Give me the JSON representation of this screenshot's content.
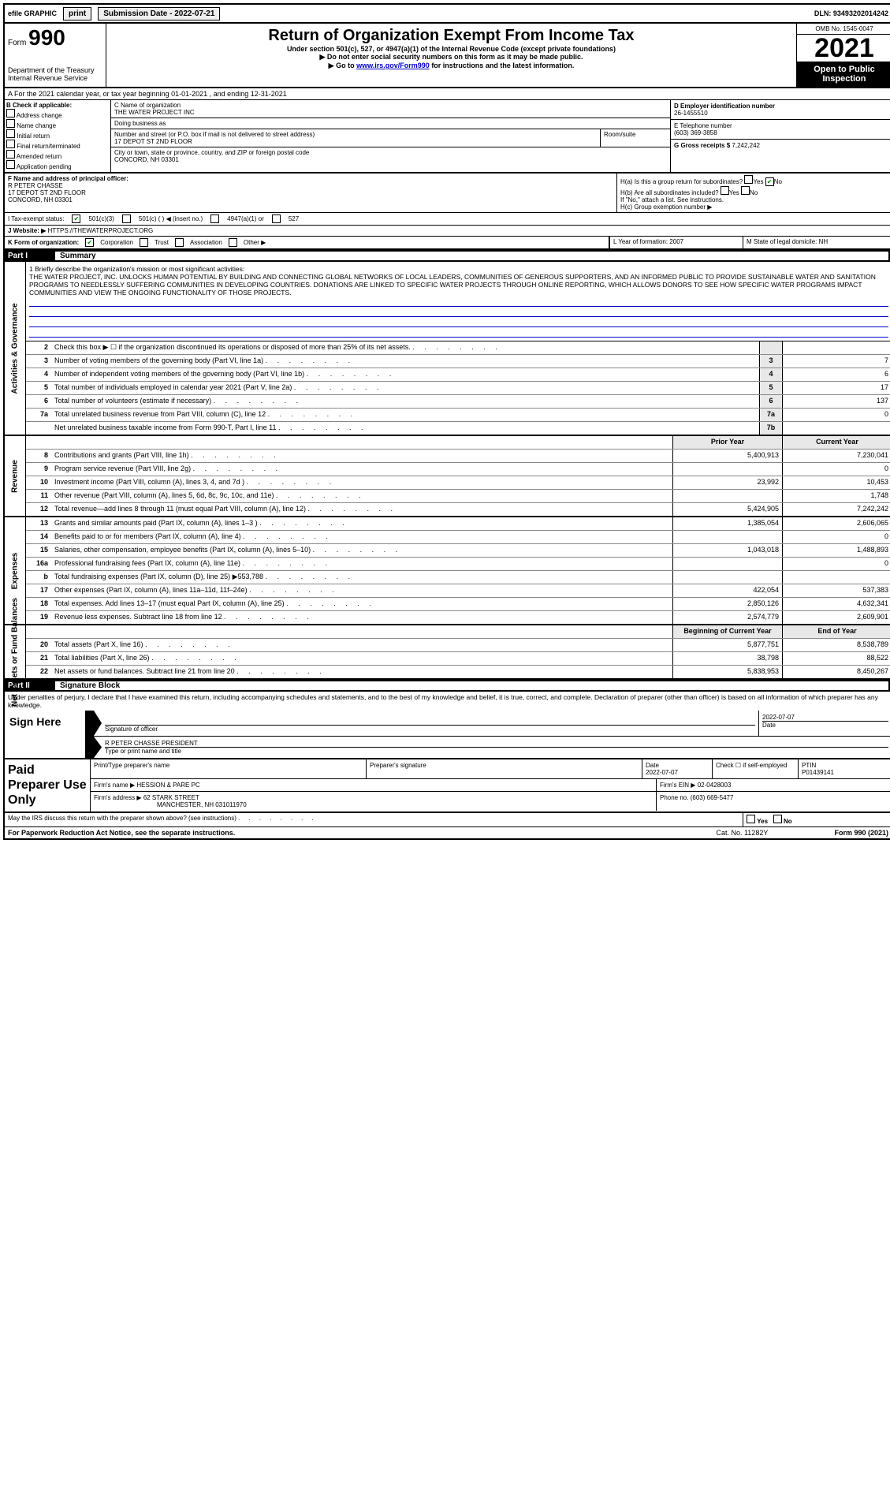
{
  "topbar": {
    "efile": "efile GRAPHIC",
    "print": "print",
    "sub_label": "Submission Date - 2022-07-21",
    "dln": "DLN: 93493202014242"
  },
  "header": {
    "form_prefix": "Form",
    "form_number": "990",
    "dept": "Department of the Treasury",
    "irs": "Internal Revenue Service",
    "title": "Return of Organization Exempt From Income Tax",
    "sub1": "Under section 501(c), 527, or 4947(a)(1) of the Internal Revenue Code (except private foundations)",
    "sub2": "▶ Do not enter social security numbers on this form as it may be made public.",
    "sub3_pre": "▶ Go to ",
    "sub3_link": "www.irs.gov/Form990",
    "sub3_post": " for instructions and the latest information.",
    "omb": "OMB No. 1545-0047",
    "year": "2021",
    "open": "Open to Public Inspection"
  },
  "dates": {
    "a_line": "A For the 2021 calendar year, or tax year beginning 01-01-2021   , and ending 12-31-2021"
  },
  "box_b": {
    "hdr": "B Check if applicable:",
    "o1": "Address change",
    "o2": "Name change",
    "o3": "Initial return",
    "o4": "Final return/terminated",
    "o5": "Amended return",
    "o6": "Application pending"
  },
  "org": {
    "c_label": "C Name of organization",
    "name": "THE WATER PROJECT INC",
    "dba_label": "Doing business as",
    "dba": "",
    "street_label": "Number and street (or P.O. box if mail is not delivered to street address)",
    "street": "17 DEPOT ST 2ND FLOOR",
    "room_label": "Room/suite",
    "city_label": "City or town, state or province, country, and ZIP or foreign postal code",
    "city": "CONCORD, NH  03301"
  },
  "right": {
    "d_label": "D Employer identification number",
    "ein": "26-1455510",
    "e_label": "E Telephone number",
    "phone": "(603) 369-3858",
    "g_label": "G Gross receipts $",
    "gross": "7,242,242"
  },
  "officer": {
    "f_label": "F  Name and address of principal officer:",
    "name": "R PETER CHASSE",
    "addr1": "17 DEPOT ST 2ND FLOOR",
    "addr2": "CONCORD, NH  03301"
  },
  "group": {
    "ha": "H(a)  Is this a group return for subordinates?",
    "hb": "H(b)  Are all subordinates included?",
    "hb_note": "If \"No,\" attach a list. See instructions.",
    "hc": "H(c)  Group exemption number ▶"
  },
  "status": {
    "i": "I   Tax-exempt status:",
    "c3": "501(c)(3)",
    "c": "501(c) (   ) ◀ (insert no.)",
    "a1": "4947(a)(1) or",
    "s527": "527"
  },
  "website": {
    "j": "J   Website: ▶",
    "url": "HTTPS://THEWATERPROJECT.ORG"
  },
  "kline": {
    "k": "K Form of organization:",
    "corp": "Corporation",
    "trust": "Trust",
    "assoc": "Association",
    "other": "Other ▶",
    "l": "L Year of formation: 2007",
    "m": "M State of legal domicile: NH"
  },
  "part1": {
    "label": "Part I",
    "title": "Summary"
  },
  "mission": {
    "lead": "1   Briefly describe the organization's mission or most significant activities:",
    "text": "THE WATER PROJECT, INC. UNLOCKS HUMAN POTENTIAL BY BUILDING AND CONNECTING GLOBAL NETWORKS OF LOCAL LEADERS, COMMUNITIES OF GENEROUS SUPPORTERS, AND AN INFORMED PUBLIC TO PROVIDE SUSTAINABLE WATER AND SANITATION PROGRAMS TO NEEDLESSLY SUFFERING COMMUNITIES IN DEVELOPING COUNTRIES. DONATIONS ARE LINKED TO SPECIFIC WATER PROJECTS THROUGH ONLINE REPORTING, WHICH ALLOWS DONORS TO SEE HOW SPECIFIC WATER PROGRAMS IMPACT COMMUNITIES AND VIEW THE ONGOING FUNCTIONALITY OF THOSE PROJECTS."
  },
  "gov_lines": [
    {
      "n": "2",
      "d": "Check this box ▶ ☐ if the organization discontinued its operations or disposed of more than 25% of its net assets.",
      "b": "",
      "v": ""
    },
    {
      "n": "3",
      "d": "Number of voting members of the governing body (Part VI, line 1a)",
      "b": "3",
      "v": "7"
    },
    {
      "n": "4",
      "d": "Number of independent voting members of the governing body (Part VI, line 1b)",
      "b": "4",
      "v": "6"
    },
    {
      "n": "5",
      "d": "Total number of individuals employed in calendar year 2021 (Part V, line 2a)",
      "b": "5",
      "v": "17"
    },
    {
      "n": "6",
      "d": "Total number of volunteers (estimate if necessary)",
      "b": "6",
      "v": "137"
    },
    {
      "n": "7a",
      "d": "Total unrelated business revenue from Part VIII, column (C), line 12",
      "b": "7a",
      "v": "0"
    },
    {
      "n": "",
      "d": "Net unrelated business taxable income from Form 990-T, Part I, line 11",
      "b": "7b",
      "v": ""
    }
  ],
  "strip_gov": "Activities & Governance",
  "strip_rev": "Revenue",
  "strip_exp": "Expenses",
  "strip_net": "Net Assets or Fund Balances",
  "year_hdr": {
    "prior": "Prior Year",
    "curr": "Current Year"
  },
  "rev_lines": [
    {
      "n": "8",
      "d": "Contributions and grants (Part VIII, line 1h)",
      "p": "5,400,913",
      "c": "7,230,041"
    },
    {
      "n": "9",
      "d": "Program service revenue (Part VIII, line 2g)",
      "p": "",
      "c": "0"
    },
    {
      "n": "10",
      "d": "Investment income (Part VIII, column (A), lines 3, 4, and 7d )",
      "p": "23,992",
      "c": "10,453"
    },
    {
      "n": "11",
      "d": "Other revenue (Part VIII, column (A), lines 5, 6d, 8c, 9c, 10c, and 11e)",
      "p": "",
      "c": "1,748"
    },
    {
      "n": "12",
      "d": "Total revenue—add lines 8 through 11 (must equal Part VIII, column (A), line 12)",
      "p": "5,424,905",
      "c": "7,242,242"
    }
  ],
  "exp_lines": [
    {
      "n": "13",
      "d": "Grants and similar amounts paid (Part IX, column (A), lines 1–3 )",
      "p": "1,385,054",
      "c": "2,606,065"
    },
    {
      "n": "14",
      "d": "Benefits paid to or for members (Part IX, column (A), line 4)",
      "p": "",
      "c": "0"
    },
    {
      "n": "15",
      "d": "Salaries, other compensation, employee benefits (Part IX, column (A), lines 5–10)",
      "p": "1,043,018",
      "c": "1,488,893"
    },
    {
      "n": "16a",
      "d": "Professional fundraising fees (Part IX, column (A), line 11e)",
      "p": "",
      "c": "0"
    },
    {
      "n": "b",
      "d": "Total fundraising expenses (Part IX, column (D), line 25) ▶553,788",
      "p": "",
      "c": ""
    },
    {
      "n": "17",
      "d": "Other expenses (Part IX, column (A), lines 11a–11d, 11f–24e)",
      "p": "422,054",
      "c": "537,383"
    },
    {
      "n": "18",
      "d": "Total expenses. Add lines 13–17 (must equal Part IX, column (A), line 25)",
      "p": "2,850,126",
      "c": "4,632,341"
    },
    {
      "n": "19",
      "d": "Revenue less expenses. Subtract line 18 from line 12",
      "p": "2,574,779",
      "c": "2,609,901"
    }
  ],
  "net_hdr": {
    "prior": "Beginning of Current Year",
    "curr": "End of Year"
  },
  "net_lines": [
    {
      "n": "20",
      "d": "Total assets (Part X, line 16)",
      "p": "5,877,751",
      "c": "8,538,789"
    },
    {
      "n": "21",
      "d": "Total liabilities (Part X, line 26)",
      "p": "38,798",
      "c": "88,522"
    },
    {
      "n": "22",
      "d": "Net assets or fund balances. Subtract line 21 from line 20",
      "p": "5,838,953",
      "c": "8,450,267"
    }
  ],
  "part2": {
    "label": "Part II",
    "title": "Signature Block"
  },
  "declaration": "Under penalties of perjury, I declare that I have examined this return, including accompanying schedules and statements, and to the best of my knowledge and belief, it is true, correct, and complete. Declaration of preparer (other than officer) is based on all information of which preparer has any knowledge.",
  "sign": {
    "label": "Sign Here",
    "sig_label": "Signature of officer",
    "date": "2022-07-07",
    "date_label": "Date",
    "name": "R PETER CHASSE  PRESIDENT",
    "name_label": "Type or print name and title"
  },
  "paid": {
    "label": "Paid Preparer Use Only",
    "h1": "Print/Type preparer's name",
    "h2": "Preparer's signature",
    "h3": "Date",
    "date": "2022-07-07",
    "h4": "Check ☐ if self-employed",
    "h5": "PTIN",
    "ptin": "P01439141",
    "firm_label": "Firm's name    ▶",
    "firm": "HESSION & PARE PC",
    "ein_label": "Firm's EIN ▶",
    "ein": "02-0428003",
    "addr_label": "Firm's address ▶",
    "addr1": "62 STARK STREET",
    "addr2": "MANCHESTER, NH  031011970",
    "phone_label": "Phone no.",
    "phone": "(603) 669-5477"
  },
  "discuss": "May the IRS discuss this return with the preparer shown above? (see instructions)",
  "footer": {
    "l": "For Paperwork Reduction Act Notice, see the separate instructions.",
    "m": "Cat. No. 11282Y",
    "r": "Form 990 (2021)"
  }
}
